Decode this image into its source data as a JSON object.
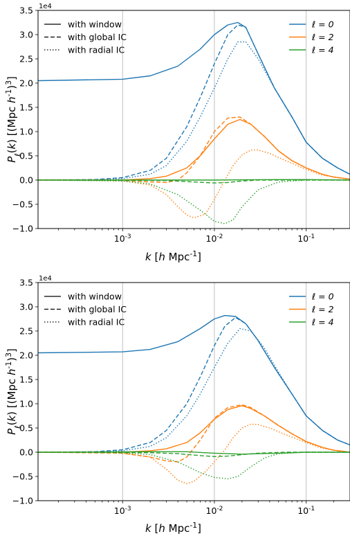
{
  "chart_data": [
    {
      "type": "line",
      "xscale": "log",
      "xlim": [
        0.00012,
        0.3
      ],
      "ylim": [
        -1.0,
        3.5
      ],
      "offset_text": "1e4",
      "xlabel": "k [h Mpc^-1]",
      "ylabel": "P_ℓ(k) [(Mpc h^-1)^3]",
      "x_ticks": [
        {
          "value": 0.001,
          "label": "10^-3"
        },
        {
          "value": 0.01,
          "label": "10^-2"
        },
        {
          "value": 0.1,
          "label": "10^-1"
        }
      ],
      "y_ticks": [
        {
          "value": -1.0,
          "label": "−1.0"
        },
        {
          "value": -0.5,
          "label": "−0.5"
        },
        {
          "value": 0.0,
          "label": "0.0"
        },
        {
          "value": 0.5,
          "label": "0.5"
        },
        {
          "value": 1.0,
          "label": "1.0"
        },
        {
          "value": 1.5,
          "label": "1.5"
        },
        {
          "value": 2.0,
          "label": "2.0"
        },
        {
          "value": 2.5,
          "label": "2.5"
        },
        {
          "value": 3.0,
          "label": "3.0"
        },
        {
          "value": 3.5,
          "label": "3.5"
        }
      ],
      "grid": "vertical lines at major x ticks",
      "legend_style": {
        "position": "top-left",
        "entries": [
          {
            "label": "with window",
            "dash": "solid"
          },
          {
            "label": "with global IC",
            "dash": "dashed"
          },
          {
            "label": "with radial IC",
            "dash": "dotted"
          }
        ]
      },
      "legend_multipole": {
        "position": "top-right",
        "entries": [
          {
            "label": "ℓ = 0",
            "color": "#1f77b4"
          },
          {
            "label": "ℓ = 2",
            "color": "#ff7f0e"
          },
          {
            "label": "ℓ = 4",
            "color": "#2ca02c"
          }
        ]
      },
      "series": [
        {
          "multipole": 0,
          "color": "#1f77b4",
          "dash": "solid",
          "x": [
            0.00012,
            0.001,
            0.002,
            0.004,
            0.007,
            0.01,
            0.014,
            0.018,
            0.022,
            0.03,
            0.045,
            0.07,
            0.1,
            0.15,
            0.22,
            0.3
          ],
          "y": [
            2.05,
            2.08,
            2.15,
            2.35,
            2.7,
            3.0,
            3.2,
            3.25,
            3.15,
            2.6,
            1.9,
            1.3,
            0.78,
            0.45,
            0.25,
            0.12
          ]
        },
        {
          "multipole": 0,
          "color": "#1f77b4",
          "dash": "dashed",
          "x": [
            0.00012,
            0.0005,
            0.001,
            0.002,
            0.003,
            0.005,
            0.007,
            0.01,
            0.014,
            0.018,
            0.022,
            0.03,
            0.045,
            0.07,
            0.1,
            0.15,
            0.22,
            0.3
          ],
          "y": [
            0.0,
            0.01,
            0.05,
            0.2,
            0.45,
            1.1,
            1.7,
            2.4,
            3.0,
            3.2,
            3.15,
            2.6,
            1.9,
            1.3,
            0.78,
            0.45,
            0.25,
            0.12
          ]
        },
        {
          "multipole": 0,
          "color": "#1f77b4",
          "dash": "dotted",
          "x": [
            0.00012,
            0.0005,
            0.001,
            0.002,
            0.003,
            0.005,
            0.007,
            0.01,
            0.014,
            0.018,
            0.022,
            0.03,
            0.045,
            0.07,
            0.1,
            0.15,
            0.22,
            0.3
          ],
          "y": [
            0.0,
            0.0,
            0.03,
            0.12,
            0.3,
            0.8,
            1.3,
            1.9,
            2.5,
            2.85,
            2.85,
            2.5,
            1.9,
            1.3,
            0.78,
            0.45,
            0.25,
            0.12
          ]
        },
        {
          "multipole": 2,
          "color": "#ff7f0e",
          "dash": "solid",
          "x": [
            0.00012,
            0.001,
            0.002,
            0.003,
            0.005,
            0.007,
            0.01,
            0.014,
            0.019,
            0.025,
            0.035,
            0.05,
            0.07,
            0.1,
            0.15,
            0.2,
            0.3
          ],
          "y": [
            0.0,
            0.0,
            0.03,
            0.08,
            0.25,
            0.5,
            0.85,
            1.15,
            1.25,
            1.15,
            0.9,
            0.6,
            0.4,
            0.25,
            0.12,
            0.06,
            0.02
          ]
        },
        {
          "multipole": 2,
          "color": "#ff7f0e",
          "dash": "dashed",
          "x": [
            0.00012,
            0.001,
            0.002,
            0.003,
            0.004,
            0.005,
            0.007,
            0.01,
            0.014,
            0.019,
            0.025,
            0.035,
            0.05,
            0.07,
            0.1,
            0.15,
            0.2,
            0.3
          ],
          "y": [
            0.0,
            -0.01,
            -0.04,
            -0.05,
            0.0,
            0.15,
            0.5,
            1.0,
            1.28,
            1.3,
            1.15,
            0.9,
            0.6,
            0.4,
            0.25,
            0.12,
            0.06,
            0.02
          ]
        },
        {
          "multipole": 2,
          "color": "#ff7f0e",
          "dash": "dotted",
          "x": [
            0.00012,
            0.0005,
            0.001,
            0.002,
            0.003,
            0.004,
            0.005,
            0.006,
            0.008,
            0.01,
            0.013,
            0.016,
            0.02,
            0.025,
            0.03,
            0.04,
            0.06,
            0.1,
            0.15,
            0.3
          ],
          "y": [
            0.0,
            0.0,
            -0.02,
            -0.1,
            -0.3,
            -0.55,
            -0.72,
            -0.78,
            -0.7,
            -0.4,
            0.0,
            0.3,
            0.52,
            0.62,
            0.62,
            0.55,
            0.4,
            0.22,
            0.1,
            0.02
          ]
        },
        {
          "multipole": 4,
          "color": "#2ca02c",
          "dash": "solid",
          "x": [
            0.00012,
            0.001,
            0.01,
            0.05,
            0.1,
            0.3
          ],
          "y": [
            0.0,
            0.0,
            0.0,
            0.01,
            0.01,
            0.0
          ]
        },
        {
          "multipole": 4,
          "color": "#2ca02c",
          "dash": "dashed",
          "x": [
            0.00012,
            0.003,
            0.006,
            0.01,
            0.014,
            0.02,
            0.03,
            0.06,
            0.3
          ],
          "y": [
            0.0,
            -0.01,
            -0.04,
            -0.06,
            -0.05,
            -0.02,
            0.0,
            0.0,
            0.0
          ]
        },
        {
          "multipole": 4,
          "color": "#2ca02c",
          "dash": "dotted",
          "x": [
            0.00012,
            0.001,
            0.002,
            0.004,
            0.007,
            0.01,
            0.013,
            0.016,
            0.02,
            0.03,
            0.05,
            0.1,
            0.3
          ],
          "y": [
            0.0,
            -0.02,
            -0.08,
            -0.3,
            -0.62,
            -0.85,
            -0.9,
            -0.82,
            -0.55,
            -0.2,
            -0.04,
            0.0,
            0.0
          ]
        }
      ]
    },
    {
      "type": "line",
      "xscale": "log",
      "xlim": [
        0.00012,
        0.3
      ],
      "ylim": [
        -1.0,
        3.5
      ],
      "offset_text": "1e4",
      "xlabel": "k [h Mpc^-1]",
      "ylabel": "P_ℓ(k) [(Mpc h^-1)^3]",
      "x_ticks": [
        {
          "value": 0.001,
          "label": "10^-3"
        },
        {
          "value": 0.01,
          "label": "10^-2"
        },
        {
          "value": 0.1,
          "label": "10^-1"
        }
      ],
      "y_ticks": [
        {
          "value": -1.0,
          "label": "−1.0"
        },
        {
          "value": -0.5,
          "label": "−0.5"
        },
        {
          "value": 0.0,
          "label": "0.0"
        },
        {
          "value": 0.5,
          "label": "0.5"
        },
        {
          "value": 1.0,
          "label": "1.0"
        },
        {
          "value": 1.5,
          "label": "1.5"
        },
        {
          "value": 2.0,
          "label": "2.0"
        },
        {
          "value": 2.5,
          "label": "2.5"
        },
        {
          "value": 3.0,
          "label": "3.0"
        },
        {
          "value": 3.5,
          "label": "3.5"
        }
      ],
      "grid": "vertical lines at major x ticks",
      "legend_style": {
        "position": "top-left",
        "entries": [
          {
            "label": "with window",
            "dash": "solid"
          },
          {
            "label": "with global IC",
            "dash": "dashed"
          },
          {
            "label": "with radial IC",
            "dash": "dotted"
          }
        ]
      },
      "legend_multipole": {
        "position": "top-right",
        "entries": [
          {
            "label": "ℓ = 0",
            "color": "#1f77b4"
          },
          {
            "label": "ℓ = 2",
            "color": "#ff7f0e"
          },
          {
            "label": "ℓ = 4",
            "color": "#2ca02c"
          }
        ]
      },
      "series": [
        {
          "multipole": 0,
          "color": "#1f77b4",
          "dash": "solid",
          "x": [
            0.00012,
            0.001,
            0.002,
            0.004,
            0.007,
            0.01,
            0.013,
            0.017,
            0.022,
            0.03,
            0.045,
            0.07,
            0.1,
            0.15,
            0.22,
            0.3
          ],
          "y": [
            2.05,
            2.07,
            2.12,
            2.28,
            2.55,
            2.75,
            2.82,
            2.8,
            2.65,
            2.3,
            1.75,
            1.2,
            0.75,
            0.45,
            0.25,
            0.15
          ]
        },
        {
          "multipole": 0,
          "color": "#1f77b4",
          "dash": "dashed",
          "x": [
            0.00012,
            0.0005,
            0.001,
            0.002,
            0.003,
            0.005,
            0.007,
            0.01,
            0.013,
            0.017,
            0.022,
            0.03,
            0.045,
            0.07,
            0.1,
            0.15,
            0.22,
            0.3
          ],
          "y": [
            0.0,
            0.01,
            0.05,
            0.2,
            0.45,
            1.0,
            1.55,
            2.2,
            2.6,
            2.78,
            2.65,
            2.3,
            1.75,
            1.2,
            0.75,
            0.45,
            0.25,
            0.15
          ]
        },
        {
          "multipole": 0,
          "color": "#1f77b4",
          "dash": "dotted",
          "x": [
            0.00012,
            0.0005,
            0.001,
            0.002,
            0.003,
            0.005,
            0.007,
            0.01,
            0.014,
            0.019,
            0.025,
            0.035,
            0.05,
            0.07,
            0.1,
            0.15,
            0.22,
            0.3
          ],
          "y": [
            0.0,
            0.0,
            0.03,
            0.12,
            0.3,
            0.75,
            1.2,
            1.75,
            2.25,
            2.55,
            2.5,
            2.15,
            1.65,
            1.2,
            0.75,
            0.45,
            0.25,
            0.15
          ]
        },
        {
          "multipole": 2,
          "color": "#ff7f0e",
          "dash": "solid",
          "x": [
            0.00012,
            0.001,
            0.002,
            0.003,
            0.005,
            0.007,
            0.01,
            0.014,
            0.02,
            0.025,
            0.035,
            0.05,
            0.07,
            0.1,
            0.15,
            0.2,
            0.3
          ],
          "y": [
            0.0,
            0.0,
            0.03,
            0.07,
            0.2,
            0.4,
            0.68,
            0.88,
            0.96,
            0.9,
            0.75,
            0.55,
            0.38,
            0.22,
            0.1,
            0.04,
            0.0
          ]
        },
        {
          "multipole": 2,
          "color": "#ff7f0e",
          "dash": "dashed",
          "x": [
            0.00012,
            0.001,
            0.002,
            0.003,
            0.004,
            0.005,
            0.007,
            0.01,
            0.014,
            0.02,
            0.025,
            0.035,
            0.05,
            0.07,
            0.1,
            0.15,
            0.2,
            0.3
          ],
          "y": [
            0.0,
            -0.02,
            -0.1,
            -0.18,
            -0.2,
            -0.1,
            0.25,
            0.7,
            0.92,
            0.98,
            0.92,
            0.75,
            0.55,
            0.38,
            0.22,
            0.1,
            0.04,
            0.0
          ]
        },
        {
          "multipole": 2,
          "color": "#ff7f0e",
          "dash": "dotted",
          "x": [
            0.00012,
            0.0005,
            0.001,
            0.002,
            0.003,
            0.004,
            0.005,
            0.006,
            0.008,
            0.01,
            0.013,
            0.016,
            0.02,
            0.025,
            0.03,
            0.04,
            0.06,
            0.1,
            0.15,
            0.3
          ],
          "y": [
            0.0,
            0.0,
            -0.02,
            -0.1,
            -0.35,
            -0.58,
            -0.65,
            -0.6,
            -0.4,
            -0.2,
            0.05,
            0.3,
            0.5,
            0.58,
            0.57,
            0.5,
            0.36,
            0.2,
            0.08,
            0.0
          ]
        },
        {
          "multipole": 4,
          "color": "#2ca02c",
          "dash": "solid",
          "x": [
            0.00012,
            0.002,
            0.005,
            0.01,
            0.02,
            0.05,
            0.1,
            0.3
          ],
          "y": [
            0.0,
            0.01,
            0.01,
            -0.02,
            -0.04,
            -0.02,
            0.0,
            0.0
          ]
        },
        {
          "multipole": 4,
          "color": "#2ca02c",
          "dash": "dashed",
          "x": [
            0.00012,
            0.002,
            0.004,
            0.007,
            0.01,
            0.014,
            0.02,
            0.03,
            0.06,
            0.3
          ],
          "y": [
            0.0,
            -0.01,
            -0.03,
            -0.07,
            -0.09,
            -0.08,
            -0.05,
            -0.02,
            0.0,
            0.0
          ]
        },
        {
          "multipole": 4,
          "color": "#2ca02c",
          "dash": "dotted",
          "x": [
            0.00012,
            0.001,
            0.002,
            0.004,
            0.007,
            0.01,
            0.014,
            0.018,
            0.025,
            0.035,
            0.05,
            0.1,
            0.3
          ],
          "y": [
            0.0,
            -0.01,
            -0.05,
            -0.2,
            -0.42,
            -0.52,
            -0.55,
            -0.5,
            -0.3,
            -0.12,
            -0.03,
            0.0,
            0.0
          ]
        }
      ]
    }
  ]
}
